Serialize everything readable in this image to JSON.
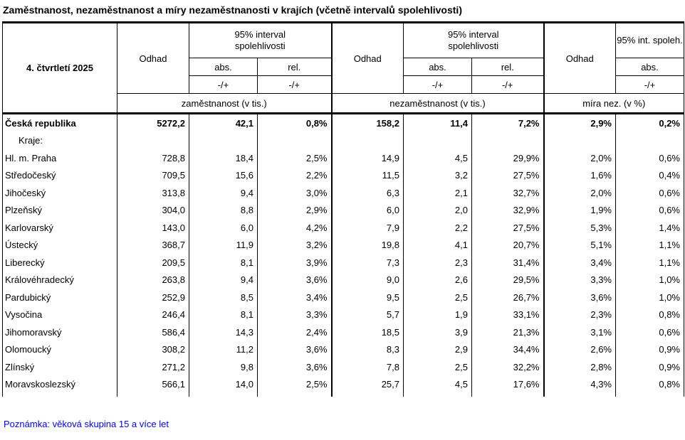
{
  "title": "Zaměstnanost, nezaměstnanost a míry nezaměstnanosti v krajích (včetně intervalů spolehlivosti)",
  "table": {
    "period": "4. čtvrtletí 2025",
    "groups": [
      {
        "odhad": "Odhad",
        "interval": "95% interval spolehlivosti",
        "abs": "abs.",
        "rel": "rel.",
        "pm": "-/+",
        "measure": "zaměstnanost (v tis.)"
      },
      {
        "odhad": "Odhad",
        "interval": "95% interval spolehlivosti",
        "abs": "abs.",
        "rel": "rel.",
        "pm": "-/+",
        "measure": "nezaměstnanost (v tis.)"
      },
      {
        "odhad": "Odhad",
        "interval": "95% int. spoleh.",
        "abs": "abs.",
        "pm": "-/+",
        "measure": "míra nez. (v %)"
      }
    ],
    "rows": [
      {
        "label": "Česká republika",
        "bold": true,
        "indent": false,
        "values": [
          "5272,2",
          "42,1",
          "0,8%",
          "158,2",
          "11,4",
          "7,2%",
          "2,9%",
          "0,2%"
        ]
      },
      {
        "label": "Kraje:",
        "bold": false,
        "indent": true,
        "values": [
          "",
          "",
          "",
          "",
          "",
          "",
          "",
          ""
        ]
      },
      {
        "label": "Hl. m. Praha",
        "bold": false,
        "indent": false,
        "values": [
          "728,8",
          "18,4",
          "2,5%",
          "14,9",
          "4,5",
          "29,9%",
          "2,0%",
          "0,6%"
        ]
      },
      {
        "label": "Středočeský",
        "bold": false,
        "indent": false,
        "values": [
          "709,5",
          "15,6",
          "2,2%",
          "11,5",
          "3,2",
          "27,5%",
          "1,6%",
          "0,4%"
        ]
      },
      {
        "label": "Jihočeský",
        "bold": false,
        "indent": false,
        "values": [
          "313,8",
          "9,4",
          "3,0%",
          "6,3",
          "2,1",
          "32,7%",
          "2,0%",
          "0,6%"
        ]
      },
      {
        "label": "Plzeňský",
        "bold": false,
        "indent": false,
        "values": [
          "304,0",
          "8,8",
          "2,9%",
          "6,0",
          "2,0",
          "32,9%",
          "1,9%",
          "0,6%"
        ]
      },
      {
        "label": "Karlovarský",
        "bold": false,
        "indent": false,
        "values": [
          "143,0",
          "6,0",
          "4,2%",
          "7,9",
          "2,2",
          "27,5%",
          "5,3%",
          "1,4%"
        ]
      },
      {
        "label": "Ústecký",
        "bold": false,
        "indent": false,
        "values": [
          "368,7",
          "11,9",
          "3,2%",
          "19,8",
          "4,1",
          "20,7%",
          "5,1%",
          "1,1%"
        ]
      },
      {
        "label": "Liberecký",
        "bold": false,
        "indent": false,
        "values": [
          "209,5",
          "8,1",
          "3,9%",
          "7,3",
          "2,3",
          "31,4%",
          "3,4%",
          "1,1%"
        ]
      },
      {
        "label": "Královéhradecký",
        "bold": false,
        "indent": false,
        "values": [
          "263,8",
          "9,4",
          "3,6%",
          "9,0",
          "2,6",
          "29,5%",
          "3,3%",
          "1,0%"
        ]
      },
      {
        "label": "Pardubický",
        "bold": false,
        "indent": false,
        "values": [
          "252,9",
          "8,5",
          "3,4%",
          "9,5",
          "2,5",
          "26,7%",
          "3,6%",
          "1,0%"
        ]
      },
      {
        "label": "Vysočina",
        "bold": false,
        "indent": false,
        "values": [
          "246,4",
          "8,1",
          "3,3%",
          "5,7",
          "1,9",
          "33,1%",
          "2,3%",
          "0,8%"
        ]
      },
      {
        "label": "Jihomoravský",
        "bold": false,
        "indent": false,
        "values": [
          "586,4",
          "14,3",
          "2,4%",
          "18,5",
          "3,9",
          "21,3%",
          "3,1%",
          "0,6%"
        ]
      },
      {
        "label": "Olomoucký",
        "bold": false,
        "indent": false,
        "values": [
          "308,2",
          "11,2",
          "3,6%",
          "8,3",
          "2,9",
          "34,4%",
          "2,6%",
          "0,9%"
        ]
      },
      {
        "label": "Zlínský",
        "bold": false,
        "indent": false,
        "values": [
          "271,2",
          "9,8",
          "3,6%",
          "7,8",
          "2,5",
          "32,2%",
          "2,8%",
          "0,9%"
        ]
      },
      {
        "label": "Moravskoslezský",
        "bold": false,
        "indent": false,
        "values": [
          "566,1",
          "14,0",
          "2,5%",
          "25,7",
          "4,5",
          "17,6%",
          "4,3%",
          "0,8%"
        ]
      }
    ]
  },
  "note": "Poznámka: věková skupina 15 a více let",
  "colors": {
    "text": "#000000",
    "border": "#000000",
    "note_text": "#0000ff",
    "background": "#ffffff"
  }
}
